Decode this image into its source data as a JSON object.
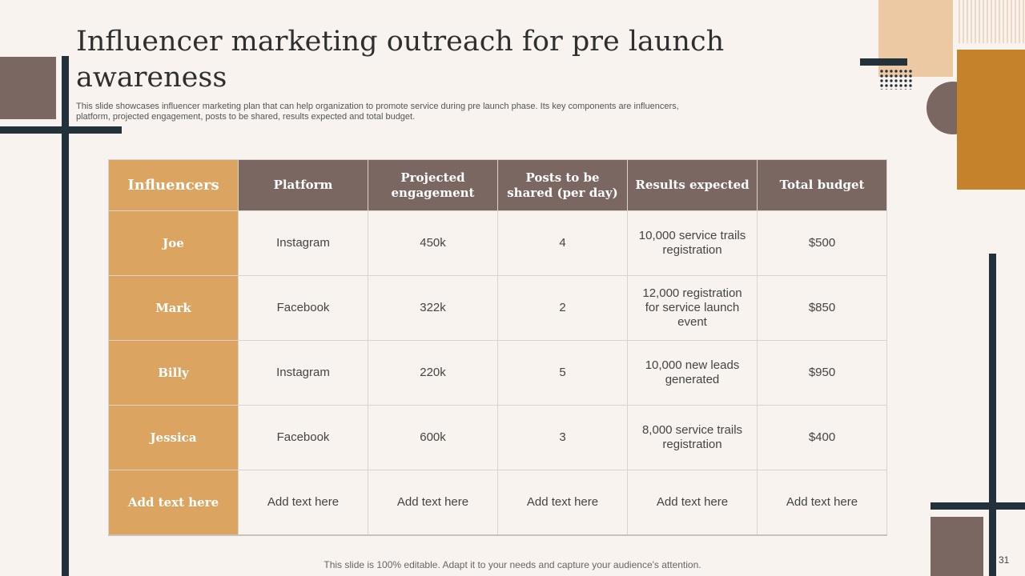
{
  "header": {
    "title": "Influencer marketing outreach for pre launch awareness",
    "subtitle": "This slide showcases influencer marketing plan that can help organization to promote service during pre launch phase. Its key components are influencers, platform, projected engagement, posts to be shared, results expected and total budget."
  },
  "table": {
    "columns": [
      "Influencers",
      "Platform",
      "Projected engagement",
      "Posts to be shared (per day)",
      "Results expected",
      "Total budget"
    ],
    "rows": [
      {
        "influencer": "Joe",
        "platform": "Instagram",
        "engagement": "450k",
        "posts": "4",
        "results": "10,000 service trails registration",
        "budget": "$500"
      },
      {
        "influencer": "Mark",
        "platform": "Facebook",
        "engagement": "322k",
        "posts": "2",
        "results": "12,000 registration for service launch event",
        "budget": "$850"
      },
      {
        "influencer": "Billy",
        "platform": "Instagram",
        "engagement": "220k",
        "posts": "5",
        "results": "10,000 new leads generated",
        "budget": "$950"
      },
      {
        "influencer": "Jessica",
        "platform": "Facebook",
        "engagement": "600k",
        "posts": "3",
        "results": "8,000 service trails registration",
        "budget": "$400"
      },
      {
        "influencer": "Add text here",
        "platform": "Add text here",
        "engagement": "Add text here",
        "posts": "Add text here",
        "results": "Add text here",
        "budget": "Add text here"
      }
    ]
  },
  "footer": {
    "note": "This slide is 100% editable. Adapt it to your needs and capture your audience's attention.",
    "page_number": "31"
  },
  "colors": {
    "accent_orange": "#dba461",
    "header_brown": "#7a6762",
    "dark_navy": "#23323a",
    "background": "#f8f3ee"
  }
}
